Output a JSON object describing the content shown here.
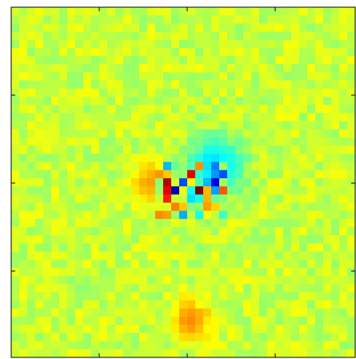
{
  "chart_data": {
    "type": "heatmap",
    "title": "",
    "xlabel": "",
    "ylabel": "",
    "grid_size": [
      43,
      43
    ],
    "x_ticks_count": 4,
    "y_ticks_count": 4,
    "tick_labels_shown": false,
    "colormap": "jet",
    "background_value": 0.57,
    "background_variation": 0.05,
    "features": [
      {
        "label": "central-dipole-cluster",
        "row": 22,
        "col": 22,
        "radius": 6,
        "range": [
          0.0,
          1.0
        ]
      },
      {
        "label": "upper-right-cyan-blob",
        "row": 19,
        "col": 25,
        "radius": 4,
        "value": 0.33
      },
      {
        "label": "left-yellow-blob",
        "row": 21,
        "col": 17,
        "radius": 3,
        "value": 0.72
      },
      {
        "label": "lower-yellow-blob",
        "row": 38,
        "col": 22,
        "radius": 3,
        "value": 0.74
      }
    ],
    "spikes": [
      {
        "row": 21,
        "col": 19,
        "value": 0.95
      },
      {
        "row": 22,
        "col": 19,
        "value": 0.9
      },
      {
        "row": 23,
        "col": 19,
        "value": 0.85
      },
      {
        "row": 22,
        "col": 20,
        "value": 0.05
      },
      {
        "row": 21,
        "col": 21,
        "value": 0.2
      },
      {
        "row": 20,
        "col": 22,
        "value": 0.9
      },
      {
        "row": 22,
        "col": 23,
        "value": 1.0
      },
      {
        "row": 21,
        "col": 25,
        "value": 0.1
      },
      {
        "row": 20,
        "col": 26,
        "value": 0.2
      },
      {
        "row": 19,
        "col": 25,
        "value": 0.25
      },
      {
        "row": 22,
        "col": 25,
        "value": 0.28
      },
      {
        "row": 23,
        "col": 24,
        "value": 0.7
      },
      {
        "row": 24,
        "col": 20,
        "value": 0.75
      },
      {
        "row": 24,
        "col": 21,
        "value": 0.68
      },
      {
        "row": 24,
        "col": 24,
        "value": 0.72
      },
      {
        "row": 23,
        "col": 22,
        "value": 0.35
      }
    ],
    "axis_color": "#000000"
  }
}
